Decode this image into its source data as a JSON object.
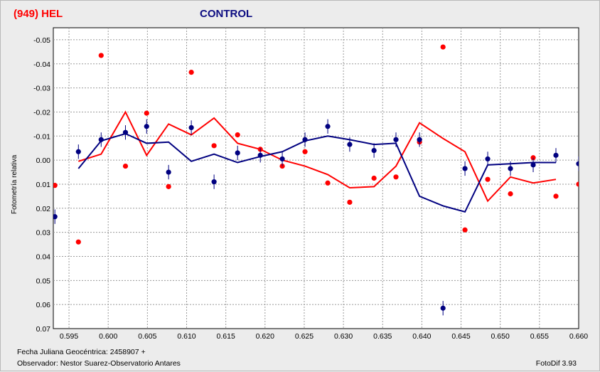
{
  "header": {
    "title_left": "(949) HEL",
    "title_right": "CONTROL"
  },
  "footer": {
    "line1": "Fecha Juliana Geocéntrica: 2458907 +",
    "line2": "Observador: Nestor Suarez-Observatorio Antares",
    "software": "FotoDif 3.93"
  },
  "chart_data": {
    "type": "scatter",
    "title": "",
    "xlabel": "",
    "ylabel": "Fotometría relativa",
    "xlim": [
      0.593,
      0.66
    ],
    "ylim": [
      -0.055,
      0.07
    ],
    "y_inverted": true,
    "grid": true,
    "x_ticks": [
      "0.595",
      "0.600",
      "0.605",
      "0.610",
      "0.615",
      "0.620",
      "0.625",
      "0.630",
      "0.635",
      "0.640",
      "0.645",
      "0.650",
      "0.655",
      "0.660"
    ],
    "y_ticks": [
      "-0.05",
      "-0.04",
      "-0.03",
      "-0.02",
      "-0.01",
      "0.00",
      "0.01",
      "0.02",
      "0.03",
      "0.04",
      "0.05",
      "0.06",
      "0.07"
    ],
    "colors": {
      "red": "#ff0000",
      "blue": "#000080"
    },
    "series": [
      {
        "role": "red-points",
        "color": "#ff0000",
        "x": [
          0.5932,
          0.5962,
          0.5991,
          0.6022,
          0.6049,
          0.6077,
          0.6106,
          0.6135,
          0.6165,
          0.6194,
          0.6222,
          0.6251,
          0.628,
          0.6308,
          0.6339,
          0.6367,
          0.6397,
          0.6427,
          0.6455,
          0.6484,
          0.6513,
          0.6542,
          0.6571,
          0.66
        ],
        "y": [
          0.0105,
          0.034,
          -0.0435,
          0.0025,
          -0.0195,
          0.011,
          -0.0365,
          -0.006,
          -0.0105,
          -0.0045,
          0.0025,
          -0.0035,
          0.0095,
          0.0175,
          0.0075,
          0.007,
          -0.0075,
          -0.047,
          0.029,
          0.008,
          0.014,
          -0.001,
          0.015,
          0.01
        ]
      },
      {
        "role": "blue-points",
        "color": "#000080",
        "x": [
          0.5932,
          0.5962,
          0.5991,
          0.6022,
          0.6049,
          0.6077,
          0.6106,
          0.6135,
          0.6165,
          0.6194,
          0.6222,
          0.6251,
          0.628,
          0.6308,
          0.6339,
          0.6367,
          0.6397,
          0.6427,
          0.6455,
          0.6484,
          0.6513,
          0.6542,
          0.6571,
          0.66
        ],
        "y": [
          0.0235,
          -0.0035,
          -0.0085,
          -0.0115,
          -0.014,
          0.005,
          -0.0135,
          0.009,
          -0.003,
          -0.002,
          -0.0005,
          -0.0085,
          -0.014,
          -0.0065,
          -0.004,
          -0.0085,
          -0.0085,
          0.0615,
          0.0035,
          -0.0005,
          0.0035,
          0.002,
          -0.002,
          0.0015
        ],
        "err": 0.003
      },
      {
        "role": "red-line",
        "color": "#ff0000",
        "x": [
          0.5962,
          0.5991,
          0.6022,
          0.6049,
          0.6077,
          0.6106,
          0.6135,
          0.6165,
          0.6194,
          0.6222,
          0.6251,
          0.628,
          0.6308,
          0.6339,
          0.6367,
          0.6397,
          0.6427,
          0.6455,
          0.6484,
          0.6513,
          0.6542,
          0.6571
        ],
        "y": [
          0.0005,
          -0.0025,
          -0.02,
          -0.002,
          -0.015,
          -0.0105,
          -0.0175,
          -0.007,
          -0.0045,
          0.0,
          0.0025,
          0.006,
          0.0115,
          0.011,
          0.0025,
          -0.0155,
          -0.009,
          -0.0035,
          0.017,
          0.007,
          0.0095,
          0.008
        ]
      },
      {
        "role": "blue-line",
        "color": "#000080",
        "x": [
          0.5962,
          0.5991,
          0.6022,
          0.6049,
          0.6077,
          0.6106,
          0.6135,
          0.6165,
          0.6194,
          0.6222,
          0.6251,
          0.628,
          0.6308,
          0.6339,
          0.6367,
          0.6397,
          0.6427,
          0.6455,
          0.6484,
          0.6513,
          0.6542,
          0.6571
        ],
        "y": [
          0.0035,
          -0.008,
          -0.011,
          -0.007,
          -0.0075,
          0.0005,
          -0.0025,
          0.001,
          -0.0015,
          -0.0035,
          -0.008,
          -0.01,
          -0.0085,
          -0.0065,
          -0.007,
          0.015,
          0.019,
          0.0215,
          0.002,
          0.0015,
          0.001,
          0.001
        ]
      }
    ]
  }
}
